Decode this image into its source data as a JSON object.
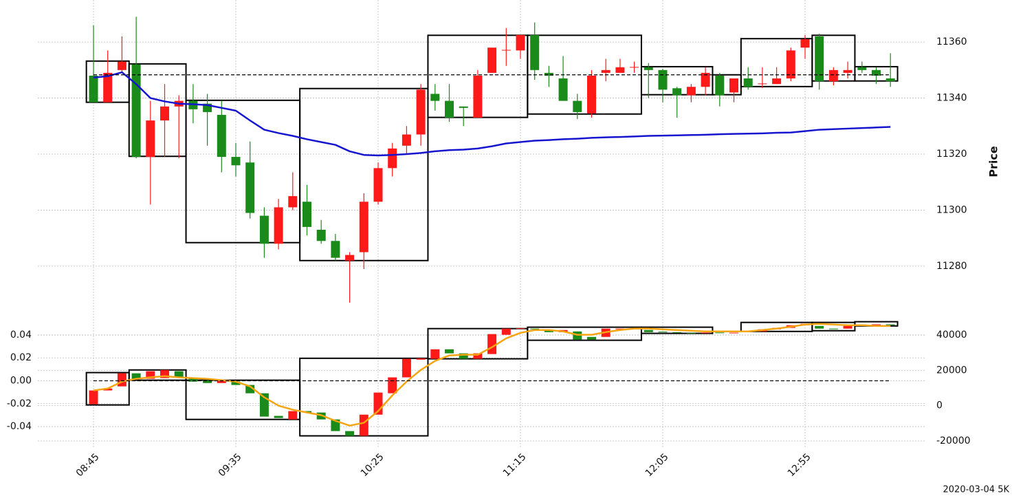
{
  "chart_data": [
    {
      "type": "candlestick",
      "ylabel": "Price",
      "ylim": [
        11265,
        11375
      ],
      "yticks": [
        11280,
        11300,
        11320,
        11340,
        11360
      ],
      "grid": true,
      "up_color": "#ff1a1a",
      "down_color": "#1a8a1a",
      "open": [
        11348,
        11338.5,
        11350,
        11352,
        11319,
        11332,
        11337,
        11339,
        11338,
        11334,
        11319,
        11317,
        11298,
        11288,
        11301,
        11303,
        11293,
        11289,
        11282,
        11285,
        11303,
        11315,
        11323,
        11327,
        11341.5,
        11339,
        11337,
        11333,
        11349,
        11357,
        11357,
        11362.5,
        11349,
        11347,
        11339,
        11334.5,
        11349,
        11349,
        11351,
        11351,
        11350,
        11343.5,
        11341,
        11344,
        11348,
        11342,
        11347,
        11345,
        11345,
        11347,
        11358,
        11362,
        11346,
        11349,
        11351,
        11350,
        11347
      ],
      "high": [
        11366,
        11357,
        11362,
        11369,
        11339,
        11345,
        11341,
        11345,
        11341.5,
        11339,
        11324,
        11324.5,
        11301,
        11304,
        11313.5,
        11309,
        11296.5,
        11291.5,
        11285,
        11306,
        11317,
        11324,
        11330,
        11345,
        11345,
        11345,
        11337,
        11350,
        11358,
        11365,
        11362.5,
        11367,
        11351.5,
        11355,
        11341.5,
        11350,
        11354,
        11354,
        11353,
        11352.5,
        11350.5,
        11344,
        11345,
        11351,
        11349,
        11347,
        11351,
        11351,
        11351,
        11358,
        11362.5,
        11363,
        11351,
        11353,
        11353,
        11351,
        11356
      ],
      "low": [
        11338.5,
        11338.5,
        11349,
        11318.5,
        11302,
        11319,
        11318.5,
        11331,
        11323,
        11313.5,
        11312,
        11297,
        11283,
        11286,
        11300,
        11291,
        11288,
        11282,
        11267,
        11279,
        11302,
        11312,
        11320,
        11323,
        11335.5,
        11331.5,
        11330,
        11333,
        11349,
        11351.5,
        11354,
        11346.5,
        11344,
        11339,
        11332.5,
        11333,
        11346,
        11349,
        11349,
        11340,
        11338.5,
        11333,
        11338.5,
        11341,
        11337,
        11338.5,
        11343,
        11343.5,
        11345,
        11346,
        11354,
        11343,
        11344.5,
        11347,
        11349,
        11345,
        11344
      ],
      "close": [
        11338.5,
        11349,
        11353,
        11319,
        11332,
        11337,
        11339,
        11336,
        11335,
        11319,
        11316,
        11299,
        11288,
        11301,
        11305,
        11294,
        11289,
        11283,
        11284,
        11303,
        11315,
        11322,
        11327,
        11343,
        11339,
        11333,
        11336.5,
        11348,
        11358,
        11357.2,
        11362.5,
        11350,
        11348,
        11339,
        11335,
        11348,
        11350,
        11351,
        11351.1,
        11350,
        11343,
        11341,
        11344,
        11349,
        11341,
        11347,
        11344,
        11345.2,
        11347,
        11357,
        11361,
        11346,
        11350,
        11350,
        11350,
        11348,
        11346
      ],
      "ma": {
        "color": "#1515d0",
        "values": [
          11347.3,
          11347.8,
          11349.2,
          11345,
          11340,
          11338.8,
          11338,
          11337.8,
          11337.5,
          11336.5,
          11335.5,
          11332,
          11328.7,
          11327.5,
          11326.5,
          11325.3,
          11324.3,
          11323.3,
          11321,
          11319.7,
          11319.5,
          11319.7,
          11320,
          11320.4,
          11321,
          11321.4,
          11321.6,
          11322,
          11322.8,
          11323.8,
          11324.3,
          11324.8,
          11325,
          11325.3,
          11325.5,
          11325.8,
          11326,
          11326.1,
          11326.3,
          11326.5,
          11326.6,
          11326.7,
          11326.8,
          11326.9,
          11327.1,
          11327.2,
          11327.3,
          11327.4,
          11327.6,
          11327.7,
          11328.2,
          11328.7,
          11328.9,
          11329.1,
          11329.3,
          11329.5,
          11329.7
        ]
      },
      "boxes": [
        {
          "start": 0,
          "end": 2,
          "high": 11353.2,
          "low": 11338.5
        },
        {
          "start": 3,
          "end": 6,
          "high": 11352.2,
          "low": 11319.2
        },
        {
          "start": 7,
          "end": 14,
          "high": 11339.2,
          "low": 11288.4
        },
        {
          "start": 15,
          "end": 23,
          "high": 11343.4,
          "low": 11282
        },
        {
          "start": 24,
          "end": 30,
          "high": 11362.4,
          "low": 11333.1
        },
        {
          "start": 31,
          "end": 38,
          "high": 11362.4,
          "low": 11334.3
        },
        {
          "start": 39,
          "end": 43,
          "high": 11351.2,
          "low": 11341.2
        },
        {
          "start": 44,
          "end": 45,
          "high": 11348.3,
          "low": 11341.2
        },
        {
          "start": 46,
          "end": 50,
          "high": 11361.2,
          "low": 11344.1
        },
        {
          "start": 51,
          "end": 53,
          "high": 11362.4,
          "low": 11346.1
        },
        {
          "start": 54,
          "end": 56,
          "high": 11351.2,
          "low": 11346.1
        }
      ],
      "hline": 11348.3
    },
    {
      "type": "candlestick",
      "candle_axis": "y2",
      "categories": [
        "08:45",
        null,
        null,
        null,
        null,
        null,
        null,
        null,
        null,
        null,
        "09:35",
        null,
        null,
        null,
        null,
        null,
        null,
        null,
        null,
        null,
        "10:25",
        null,
        null,
        null,
        null,
        null,
        null,
        null,
        null,
        null,
        "11:15",
        null,
        null,
        null,
        null,
        null,
        null,
        null,
        null,
        null,
        "12:05",
        null,
        null,
        null,
        null,
        null,
        null,
        null,
        null,
        null,
        "12:55",
        null,
        null,
        null,
        null,
        null,
        null
      ],
      "ylim": [
        -0.058,
        0.055
      ],
      "yticks": [
        -0.04,
        -0.02,
        {
          "value": 0,
          "label": "0.00"
        },
        0.02,
        0.04
      ],
      "y2lim": [
        -23500,
        49700
      ],
      "y2ticks": [
        -20000,
        0,
        20000,
        40000
      ],
      "grid": true,
      "up_color": "#ff1a1a",
      "down_color": "#1a8a1a",
      "open": [
        800,
        8600,
        10900,
        18300,
        15200,
        15600,
        19500,
        15600,
        14400,
        12800,
        13600,
        11700,
        7000,
        -5800,
        -7800,
        -3100,
        -3900,
        -7800,
        -14400,
        -17100,
        -5100,
        7000,
        16000,
        26000,
        26500,
        31900,
        29600,
        26500,
        29200,
        40100,
        43600,
        43600,
        42800,
        41600,
        42000,
        38900,
        38900,
        43200,
        43600,
        42800,
        41900,
        41600,
        41200,
        41000,
        41400,
        41000,
        42400,
        42000,
        43200,
        44000,
        45500,
        45100,
        43600,
        43600,
        45100,
        45900,
        46000
      ],
      "close": [
        8600,
        9700,
        18300,
        15200,
        19500,
        20200,
        16300,
        13600,
        12800,
        14400,
        11700,
        7000,
        -6200,
        -7000,
        -3100,
        -3900,
        -7800,
        -14400,
        -17100,
        -5100,
        7400,
        16000,
        26500,
        26800,
        31900,
        29600,
        26500,
        29600,
        40500,
        43600,
        43800,
        43200,
        41600,
        42800,
        37400,
        37400,
        43600,
        43600,
        43800,
        41600,
        41600,
        41200,
        41000,
        41400,
        41000,
        41300,
        42000,
        43200,
        44000,
        45500,
        46300,
        43600,
        43200,
        45100,
        45900,
        46000,
        45500
      ],
      "ma": {
        "color": "#f5a511",
        "values": [
          8600,
          9700,
          13600,
          15200,
          16000,
          16700,
          16000,
          15600,
          15200,
          14400,
          13600,
          10900,
          4700,
          0,
          -2300,
          -3900,
          -5400,
          -8600,
          -11300,
          -9700,
          -3100,
          5800,
          13600,
          20200,
          25300,
          28400,
          28800,
          28800,
          33100,
          38100,
          41200,
          42800,
          42800,
          42000,
          40100,
          40100,
          41600,
          42800,
          43600,
          43600,
          43200,
          42800,
          42400,
          42000,
          42000,
          42000,
          42000,
          42800,
          43600,
          44700,
          45900,
          46300,
          45900,
          45500,
          45500,
          45100,
          45100
        ]
      },
      "boxes": [
        {
          "start": 0,
          "end": 2,
          "high": 18700,
          "low": 400
        },
        {
          "start": 3,
          "end": 6,
          "high": 20200,
          "low": 14400
        },
        {
          "start": 7,
          "end": 14,
          "high": 14400,
          "low": -7800
        },
        {
          "start": 15,
          "end": 23,
          "high": 26800,
          "low": -17100
        },
        {
          "start": 24,
          "end": 30,
          "high": 43600,
          "low": 26500
        },
        {
          "start": 31,
          "end": 38,
          "high": 44400,
          "low": 37000
        },
        {
          "start": 39,
          "end": 43,
          "high": 44400,
          "low": 40900
        },
        {
          "start": 46,
          "end": 50,
          "high": 47100,
          "low": 42000
        },
        {
          "start": 51,
          "end": 53,
          "high": 47100,
          "low": 42400
        },
        {
          "start": 54,
          "end": 56,
          "high": 47500,
          "low": 45100
        }
      ],
      "hline": 0,
      "annotation": "2020-03-04 5K"
    }
  ]
}
